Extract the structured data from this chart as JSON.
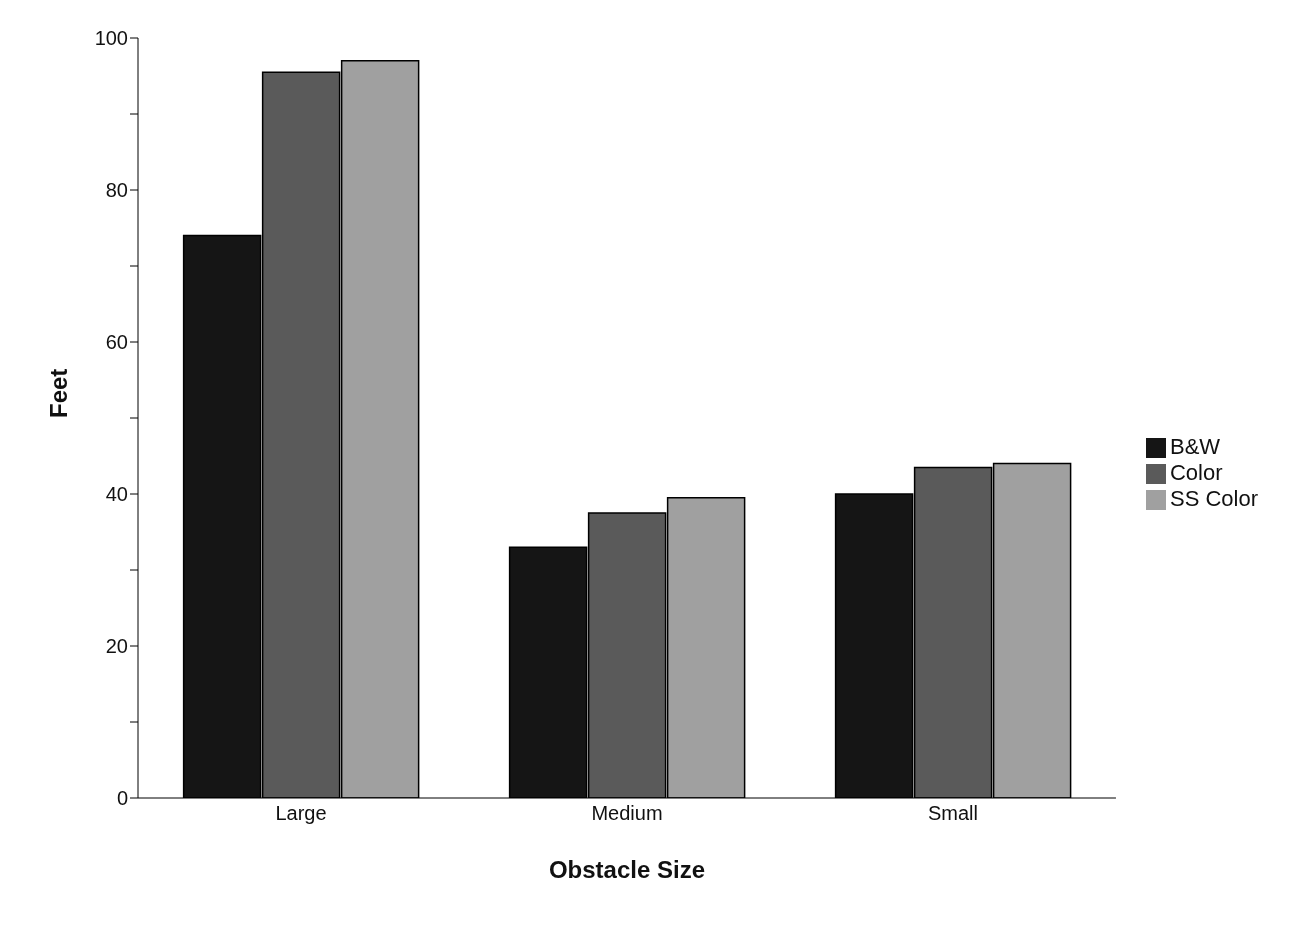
{
  "chart_data": {
    "type": "bar",
    "xlabel": "Obstacle Size",
    "ylabel": "Feet",
    "categories": [
      "Large",
      "Medium",
      "Small"
    ],
    "series": [
      {
        "name": "B&W",
        "color": "#151515",
        "values": [
          74,
          33,
          40
        ]
      },
      {
        "name": "Color",
        "color": "#5a5a5a",
        "values": [
          95.5,
          37.5,
          43.5
        ]
      },
      {
        "name": "SS Color",
        "color": "#a0a0a0",
        "values": [
          97,
          39.5,
          44
        ]
      }
    ],
    "ylim": [
      0,
      100
    ],
    "yticks": [
      0,
      {
        "value": 10,
        "label": null
      },
      20,
      {
        "value": 30,
        "label": null
      },
      40,
      {
        "value": 50,
        "label": null
      },
      60,
      {
        "value": 70,
        "label": null
      },
      80,
      {
        "value": 90,
        "label": null
      },
      100
    ],
    "grid": false,
    "legend": "right"
  }
}
